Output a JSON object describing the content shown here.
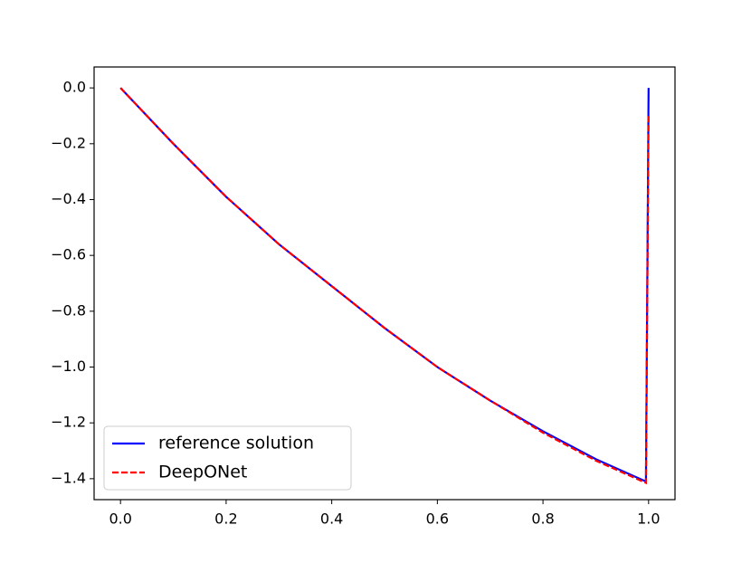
{
  "chart_data": {
    "type": "line",
    "x": [
      0,
      0.1,
      0.2,
      0.3,
      0.4,
      0.5,
      0.6,
      0.7,
      0.8,
      0.9,
      0.995,
      1.0
    ],
    "series": [
      {
        "name": "reference solution",
        "color": "#0000ff",
        "linestyle": "solid",
        "values": [
          0,
          -0.2,
          -0.39,
          -0.56,
          -0.71,
          -0.86,
          -1.0,
          -1.12,
          -1.23,
          -1.33,
          -1.41,
          0
        ]
      },
      {
        "name": "DeepONet",
        "color": "#ff0000",
        "linestyle": "dashed",
        "values": [
          0,
          -0.2,
          -0.39,
          -0.56,
          -0.71,
          -0.86,
          -1.0,
          -1.12,
          -1.235,
          -1.335,
          -1.415,
          -0.1
        ]
      }
    ],
    "xlim": [
      -0.05,
      1.05
    ],
    "ylim": [
      -1.475,
      0.075
    ],
    "xticks": [
      {
        "value": 0,
        "label": "0.0"
      },
      {
        "value": 0.2,
        "label": "0.2"
      },
      {
        "value": 0.4,
        "label": "0.4"
      },
      {
        "value": 0.6,
        "label": "0.6"
      },
      {
        "value": 0.8,
        "label": "0.8"
      },
      {
        "value": 1.0,
        "label": "1.0"
      }
    ],
    "yticks": [
      {
        "value": 0,
        "label": "0.0"
      },
      {
        "value": -0.2,
        "label": "−0.2"
      },
      {
        "value": -0.4,
        "label": "−0.4"
      },
      {
        "value": -0.6,
        "label": "−0.6"
      },
      {
        "value": -0.8,
        "label": "−0.8"
      },
      {
        "value": -1.0,
        "label": "−1.0"
      },
      {
        "value": -1.2,
        "label": "−1.2"
      },
      {
        "value": -1.4,
        "label": "−1.4"
      }
    ],
    "grid": false,
    "legend": "lower left"
  }
}
